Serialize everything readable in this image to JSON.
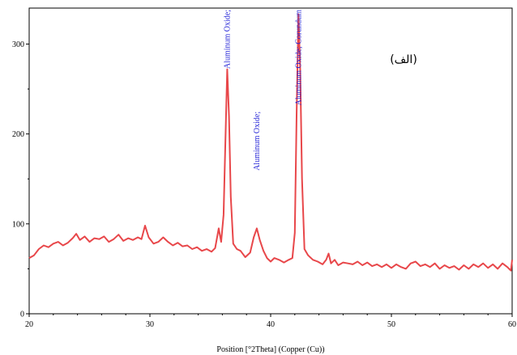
{
  "chart_data": {
    "type": "line",
    "xlabel": "Position [°2Theta] (Copper (Cu))",
    "ylabel": "",
    "xlim": [
      20,
      60
    ],
    "ylim": [
      0,
      340
    ],
    "x_ticks": [
      20,
      30,
      40,
      50,
      60
    ],
    "y_ticks": [
      0,
      100,
      200,
      300
    ],
    "grid": false,
    "line_color": "#e8474a",
    "label_color": "#1f1fd6",
    "panel_label": "(الف)",
    "series": [
      {
        "points": [
          [
            20.0,
            62
          ],
          [
            20.4,
            65
          ],
          [
            20.8,
            72
          ],
          [
            21.2,
            76
          ],
          [
            21.6,
            74
          ],
          [
            22.0,
            78
          ],
          [
            22.4,
            80
          ],
          [
            22.8,
            76
          ],
          [
            23.2,
            79
          ],
          [
            23.6,
            84
          ],
          [
            23.9,
            89
          ],
          [
            24.2,
            82
          ],
          [
            24.6,
            86
          ],
          [
            25.0,
            80
          ],
          [
            25.4,
            84
          ],
          [
            25.8,
            83
          ],
          [
            26.2,
            86
          ],
          [
            26.6,
            80
          ],
          [
            27.0,
            83
          ],
          [
            27.4,
            88
          ],
          [
            27.8,
            81
          ],
          [
            28.2,
            84
          ],
          [
            28.6,
            82
          ],
          [
            29.0,
            85
          ],
          [
            29.3,
            83
          ],
          [
            29.6,
            98
          ],
          [
            29.9,
            85
          ],
          [
            30.3,
            78
          ],
          [
            30.7,
            80
          ],
          [
            31.1,
            85
          ],
          [
            31.5,
            80
          ],
          [
            31.9,
            76
          ],
          [
            32.3,
            79
          ],
          [
            32.7,
            75
          ],
          [
            33.1,
            76
          ],
          [
            33.5,
            72
          ],
          [
            33.9,
            74
          ],
          [
            34.3,
            70
          ],
          [
            34.7,
            72
          ],
          [
            35.1,
            69
          ],
          [
            35.4,
            73
          ],
          [
            35.7,
            95
          ],
          [
            35.9,
            80
          ],
          [
            36.1,
            110
          ],
          [
            36.25,
            190
          ],
          [
            36.4,
            272
          ],
          [
            36.55,
            220
          ],
          [
            36.7,
            130
          ],
          [
            36.9,
            78
          ],
          [
            37.2,
            72
          ],
          [
            37.5,
            70
          ],
          [
            37.9,
            63
          ],
          [
            38.3,
            68
          ],
          [
            38.6,
            85
          ],
          [
            38.85,
            95
          ],
          [
            39.1,
            82
          ],
          [
            39.4,
            70
          ],
          [
            39.7,
            62
          ],
          [
            40.0,
            58
          ],
          [
            40.3,
            62
          ],
          [
            40.7,
            60
          ],
          [
            41.1,
            57
          ],
          [
            41.5,
            60
          ],
          [
            41.8,
            62
          ],
          [
            42.0,
            90
          ],
          [
            42.15,
            220
          ],
          [
            42.3,
            333
          ],
          [
            42.45,
            270
          ],
          [
            42.6,
            150
          ],
          [
            42.8,
            72
          ],
          [
            43.1,
            65
          ],
          [
            43.5,
            60
          ],
          [
            43.9,
            58
          ],
          [
            44.3,
            55
          ],
          [
            44.6,
            60
          ],
          [
            44.8,
            67
          ],
          [
            45.0,
            56
          ],
          [
            45.3,
            60
          ],
          [
            45.6,
            54
          ],
          [
            46.0,
            57
          ],
          [
            46.4,
            56
          ],
          [
            46.8,
            55
          ],
          [
            47.2,
            58
          ],
          [
            47.6,
            54
          ],
          [
            48.0,
            57
          ],
          [
            48.4,
            53
          ],
          [
            48.8,
            55
          ],
          [
            49.2,
            52
          ],
          [
            49.6,
            55
          ],
          [
            50.0,
            51
          ],
          [
            50.4,
            55
          ],
          [
            50.8,
            52
          ],
          [
            51.2,
            50
          ],
          [
            51.6,
            56
          ],
          [
            52.0,
            58
          ],
          [
            52.4,
            53
          ],
          [
            52.8,
            55
          ],
          [
            53.2,
            52
          ],
          [
            53.6,
            56
          ],
          [
            54.0,
            50
          ],
          [
            54.4,
            54
          ],
          [
            54.8,
            51
          ],
          [
            55.2,
            53
          ],
          [
            55.6,
            49
          ],
          [
            56.0,
            54
          ],
          [
            56.4,
            50
          ],
          [
            56.8,
            55
          ],
          [
            57.2,
            52
          ],
          [
            57.6,
            56
          ],
          [
            58.0,
            51
          ],
          [
            58.4,
            55
          ],
          [
            58.8,
            50
          ],
          [
            59.2,
            56
          ],
          [
            59.6,
            52
          ],
          [
            59.9,
            48
          ],
          [
            60.0,
            60
          ]
        ]
      }
    ],
    "annotations": [
      {
        "text": "Aluminum Oxide;",
        "x": 36.4,
        "y_top": 340
      },
      {
        "text": "Aluminum Oxide;",
        "x": 38.85,
        "y_top": 225
      },
      {
        "text": "Aluminum Oxide; Corundum",
        "x": 42.3,
        "y_top": 340
      }
    ]
  }
}
